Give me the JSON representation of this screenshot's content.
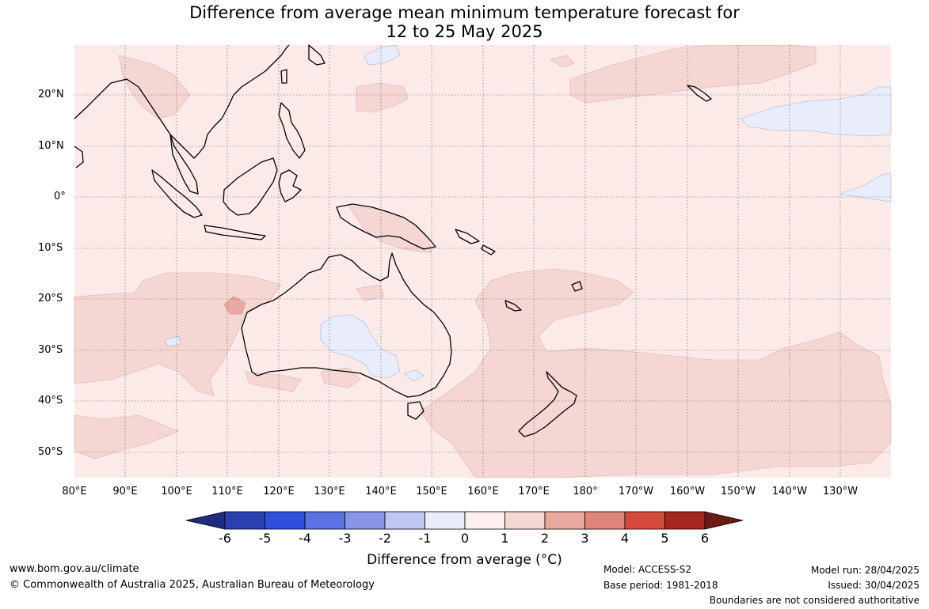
{
  "title": {
    "line1": "Difference from average mean minimum temperature forecast for",
    "line2": "12 to 25 May 2025"
  },
  "map": {
    "lat_labels": [
      "20°N",
      "10°N",
      "0°",
      "10°S",
      "20°S",
      "30°S",
      "40°S",
      "50°S"
    ],
    "lon_labels": [
      "80°E",
      "90°E",
      "100°E",
      "110°E",
      "120°E",
      "130°E",
      "140°E",
      "150°E",
      "160°E",
      "170°E",
      "180°",
      "170°W",
      "160°W",
      "150°W",
      "140°W",
      "130°W"
    ],
    "colors": {
      "ocean_base": "#fbeae8",
      "warm_0_1": "#fbeae8",
      "warm_1_2": "#f5d6d3",
      "warm_2_3": "#eba8a1",
      "cool_0_1": "#e9ecfb",
      "land_outline": "#000000",
      "border": "#888888",
      "grid": "#555555"
    }
  },
  "colorbar": {
    "ticks": [
      "-6",
      "-5",
      "-4",
      "-3",
      "-2",
      "-1",
      "0",
      "1",
      "2",
      "3",
      "4",
      "5",
      "6"
    ],
    "colors": [
      "#1d2b80",
      "#2a3fb0",
      "#2f4fdc",
      "#5a72e3",
      "#8796e6",
      "#bfc6f2",
      "#e9ecfb",
      "#fdf0ee",
      "#f5d6d3",
      "#eba8a1",
      "#e1857b",
      "#d64a3c",
      "#a6271f",
      "#6e1a14"
    ],
    "label": "Difference from average (°C)"
  },
  "footer": {
    "website": "www.bom.gov.au/climate",
    "copyright": "© Commonwealth of Australia 2025, Australian Bureau of Meteorology",
    "model": "Model: ACCESS-S2",
    "base_period": "Base period: 1981-2018",
    "model_run": "Model run: 28/04/2025",
    "issued": "Issued: 30/04/2025",
    "disclaimer": "Boundaries are not considered authoritative"
  }
}
